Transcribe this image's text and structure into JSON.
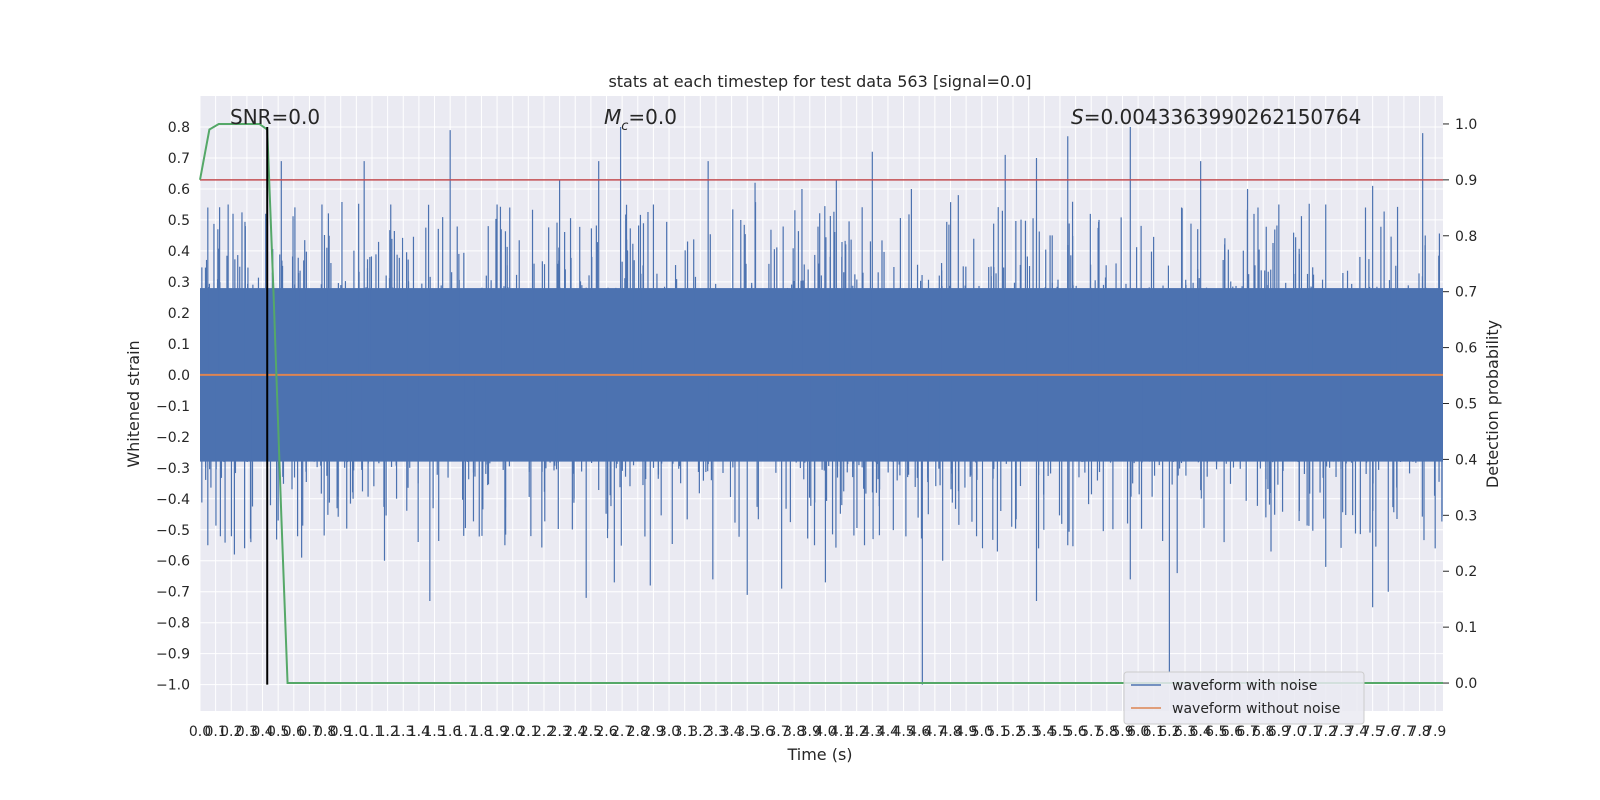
{
  "chart_data": {
    "type": "line",
    "title": "stats at each timestep for test data 563 [signal=0.0]",
    "xlabel": "Time (s)",
    "ylabel": "Whitened strain",
    "ylabel_right": "Detection probability",
    "xlim": [
      0.0,
      7.95
    ],
    "ylim": [
      -1.085,
      0.9
    ],
    "ylim_right": [
      -0.05,
      1.05
    ],
    "x_ticks": [
      "0.0",
      "0.1",
      "0.2",
      "0.3",
      "0.4",
      "0.5",
      "0.6",
      "0.7",
      "0.8",
      "0.9",
      "1.0",
      "1.1",
      "1.2",
      "1.3",
      "1.4",
      "1.5",
      "1.6",
      "1.7",
      "1.8",
      "1.9",
      "2.0",
      "2.1",
      "2.2",
      "2.3",
      "2.4",
      "2.5",
      "2.6",
      "2.7",
      "2.8",
      "2.9",
      "3.0",
      "3.1",
      "3.2",
      "3.3",
      "3.4",
      "3.5",
      "3.6",
      "3.7",
      "3.8",
      "3.9",
      "4.0",
      "4.1",
      "4.2",
      "4.3",
      "4.4",
      "4.5",
      "4.6",
      "4.7",
      "4.8",
      "4.9",
      "5.0",
      "5.1",
      "5.2",
      "5.3",
      "5.4",
      "5.5",
      "5.6",
      "5.7",
      "5.8",
      "5.9",
      "6.0",
      "6.1",
      "6.2",
      "6.3",
      "6.4",
      "6.5",
      "6.6",
      "6.7",
      "6.8",
      "6.9",
      "7.0",
      "7.1",
      "7.2",
      "7.3",
      "7.4",
      "7.5",
      "7.6",
      "7.7",
      "7.8",
      "7.9"
    ],
    "y_ticks": [
      "0.8",
      "0.7",
      "0.6",
      "0.5",
      "0.4",
      "0.3",
      "0.2",
      "0.1",
      "0.0",
      "−0.1",
      "−0.2",
      "−0.3",
      "−0.4",
      "−0.5",
      "−0.6",
      "−0.7",
      "−0.8",
      "−0.9",
      "−1.0"
    ],
    "y_ticks_right": [
      "1.0",
      "0.9",
      "0.8",
      "0.7",
      "0.6",
      "0.5",
      "0.4",
      "0.3",
      "0.2",
      "0.1",
      "0.0"
    ],
    "annotations": {
      "snr": "SNR=0.0",
      "mc_symbol": "M",
      "mc_sub": "c",
      "mc_rest": "=0.0",
      "s_symbol": "S",
      "s_rest": "=0.0043363990262150764"
    },
    "grid": true,
    "legend_position": "lower-right",
    "series": [
      {
        "name": "waveform with noise",
        "color": "#4c72b0",
        "band_upper": 0.28,
        "band_lower": -0.28,
        "peaks_x": [
          0.05,
          0.18,
          0.29,
          0.42,
          0.52,
          0.78,
          1.05,
          1.22,
          1.6,
          1.9,
          2.3,
          2.55,
          2.69,
          2.9,
          3.25,
          3.55,
          3.85,
          4.07,
          4.3,
          4.55,
          4.85,
          5.15,
          5.35,
          5.55,
          5.75,
          5.95,
          6.4,
          6.7,
          6.9,
          7.2,
          7.5,
          7.82
        ],
        "peaks_y": [
          0.54,
          0.55,
          0.48,
          0.52,
          0.69,
          0.55,
          0.69,
          0.55,
          0.79,
          0.55,
          0.63,
          0.69,
          0.8,
          0.55,
          0.69,
          0.62,
          0.6,
          0.63,
          0.72,
          0.6,
          0.58,
          0.71,
          0.7,
          0.77,
          0.5,
          0.8,
          0.69,
          0.6,
          0.55,
          0.55,
          0.61,
          0.78
        ],
        "troughs_x": [
          0.05,
          0.22,
          0.5,
          0.65,
          1.18,
          1.47,
          1.95,
          2.47,
          2.65,
          2.88,
          3.28,
          3.5,
          3.72,
          4.0,
          4.25,
          4.62,
          4.75,
          5.1,
          5.35,
          5.55,
          5.95,
          6.2,
          6.25,
          6.55,
          6.85,
          7.2,
          7.5,
          7.6,
          7.9
        ],
        "troughs_y": [
          -0.55,
          -0.58,
          -0.47,
          -0.59,
          -0.6,
          -0.73,
          -0.55,
          -0.72,
          -0.67,
          -0.68,
          -0.66,
          -0.71,
          -0.69,
          -0.67,
          -0.55,
          -1.0,
          -0.6,
          -0.57,
          -0.73,
          -0.55,
          -0.66,
          -0.96,
          -0.64,
          -0.54,
          -0.57,
          -0.62,
          -0.75,
          -0.7,
          -0.56
        ]
      },
      {
        "name": "waveform without noise",
        "color": "#dd8452",
        "x": [
          0.0,
          7.95
        ],
        "y": [
          0.0,
          0.0
        ]
      },
      {
        "color": "#55a868",
        "axis": "right",
        "x": [
          0.0,
          0.06,
          0.12,
          0.2,
          0.3,
          0.38,
          0.43,
          0.47,
          0.52,
          0.56,
          0.6,
          1.0,
          4.5,
          7.95
        ],
        "y": [
          0.9,
          0.99,
          1.0,
          1.0,
          1.0,
          1.0,
          0.99,
          0.7,
          0.3,
          0.0,
          0.0,
          0.0,
          0.0,
          0.0
        ]
      },
      {
        "color": "#c44e52",
        "axis": "right",
        "x": [
          0.0,
          7.95
        ],
        "y": [
          0.9,
          0.9
        ]
      },
      {
        "color": "#000000",
        "type": "vline",
        "x": 0.43,
        "y_range": [
          -1.0,
          0.8
        ]
      }
    ]
  }
}
